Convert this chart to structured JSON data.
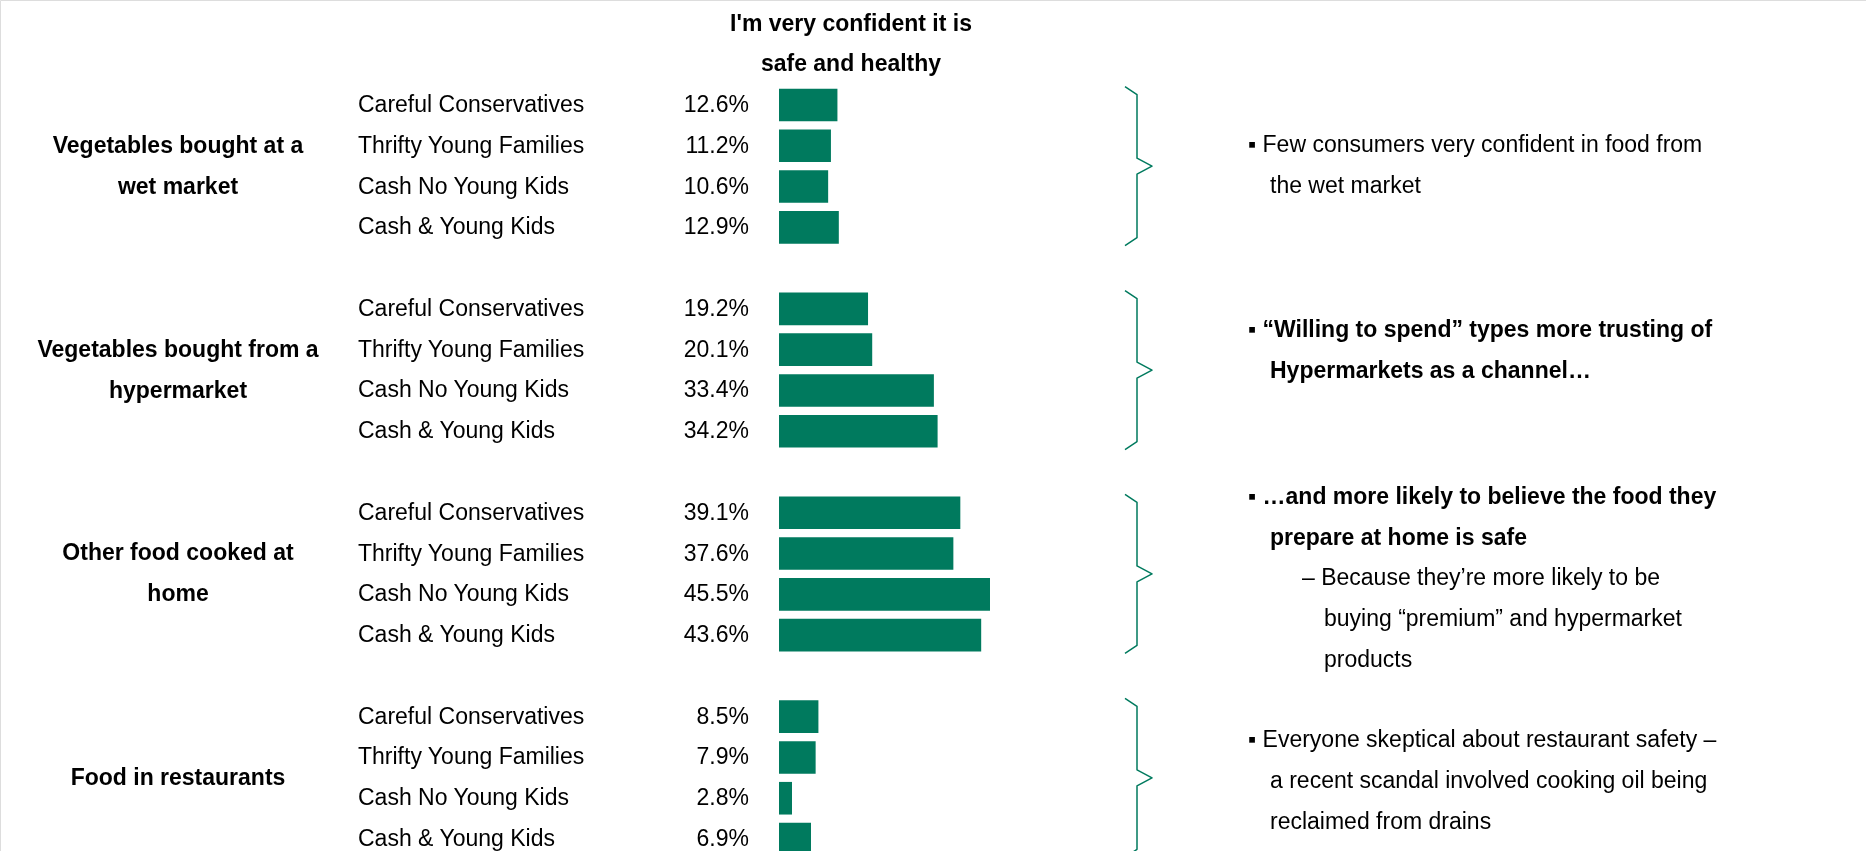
{
  "chart_data": {
    "type": "bar",
    "orientation": "horizontal",
    "title": "I'm very confident it is safe and healthy",
    "categories": [
      "Careful Conservatives",
      "Thrifty Young Families",
      "Cash No Young Kids",
      "Cash & Young Kids",
      null,
      "Careful Conservatives",
      "Thrifty Young Families",
      "Cash No Young Kids",
      "Cash & Young Kids",
      null,
      "Careful Conservatives",
      "Thrifty Young Families",
      "Cash No Young Kids",
      "Cash & Young Kids",
      null,
      "Careful Conservatives",
      "Thrifty Young Families",
      "Cash No Young Kids",
      "Cash & Young Kids"
    ],
    "values": [
      12.6,
      11.2,
      10.6,
      12.9,
      null,
      19.2,
      20.1,
      33.4,
      34.2,
      null,
      39.1,
      37.6,
      45.5,
      43.6,
      null,
      8.5,
      7.9,
      2.8,
      6.9
    ],
    "value_labels": [
      "12.6%",
      "11.2%",
      "10.6%",
      "12.9%",
      null,
      "19.2%",
      "20.1%",
      "33.4%",
      "34.2%",
      null,
      "39.1%",
      "37.6%",
      "45.5%",
      "43.6%",
      null,
      "8.5%",
      "7.9%",
      "2.8%",
      "6.9%"
    ],
    "color": "#007a5e",
    "annotations": [
      "Vegetables bought at a wet market",
      "Vegetables bought from a hypermarket",
      "Other food cooked at home",
      "Food in restaurants",
      "▪ Few consumers very confident in food from the wet market",
      "▪ “Willing to spend” types more trusting of Hypermarkets as a channel…",
      "▪ …and more likely to believe the food they prepare at home is safe",
      "– Because they’re more likely to be buying “premium” and hypermarket products",
      "▪ Everyone skeptical about restaurant safety – a recent scandal involved cooking oil being reclaimed from drains"
    ]
  }
}
